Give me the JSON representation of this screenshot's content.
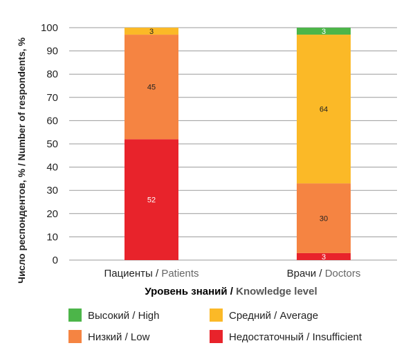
{
  "chart_data": {
    "type": "bar",
    "stacked": true,
    "categories": [
      "Пациенты / Patients",
      "Врачи / Doctors"
    ],
    "category_parts": [
      {
        "ru": "Пациенты / ",
        "en": "Patients"
      },
      {
        "ru": "Врачи / ",
        "en": "Doctors"
      }
    ],
    "series": [
      {
        "name": "Недостаточный / Insufficient",
        "color": "#e8232b",
        "values": [
          52,
          3
        ]
      },
      {
        "name": "Низкий / Low",
        "color": "#f58442",
        "values": [
          45,
          30
        ]
      },
      {
        "name": "Средний / Average",
        "color": "#fbb927",
        "values": [
          3,
          64
        ]
      },
      {
        "name": "Высокий / High",
        "color": "#4cb549",
        "values": [
          0,
          3
        ]
      }
    ],
    "ylabel": "Число респондентов, % / Number of respondents, %",
    "xlabel": "Уровень знаний / Knowledge level",
    "xlabel_parts": {
      "ru": "Уровень знаний / ",
      "en": "Knowledge level"
    },
    "ylim": [
      0,
      100
    ],
    "yticks": [
      0,
      10,
      20,
      30,
      40,
      50,
      60,
      70,
      80,
      90,
      100
    ],
    "grid": "horizontal",
    "legend": {
      "placement": "bottom",
      "order": [
        "Высокий / High",
        "Средний / Average",
        "Низкий / Low",
        "Недостаточный / Insufficient"
      ]
    }
  }
}
